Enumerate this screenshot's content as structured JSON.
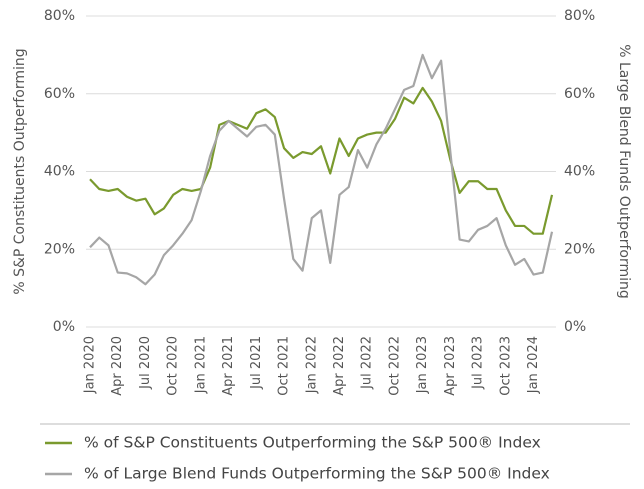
{
  "chart_data": {
    "type": "line",
    "ylabel": "% S&P Constituents Outperforming",
    "y2label": "% Large Blend Funds Outperforming",
    "categories": [
      "Jan 2020",
      null,
      null,
      "Apr 2020",
      null,
      null,
      "Jul 2020",
      null,
      null,
      "Oct 2020",
      null,
      null,
      "Jan 2021",
      null,
      null,
      "Apr 2021",
      null,
      null,
      "Jul 2021",
      null,
      null,
      "Oct 2021",
      null,
      null,
      "Jan 2022",
      null,
      null,
      "Apr 2022",
      null,
      null,
      "Jul 2022",
      null,
      null,
      "Oct 2022",
      null,
      null,
      "Jan 2023",
      null,
      null,
      "Apr 2023",
      null,
      null,
      "Jul 2023",
      null,
      null,
      "Oct 2023",
      null,
      null,
      "Jan 2024",
      null,
      null
    ],
    "series": [
      {
        "name": "% of S&P Constituents Outperforming the S&P 500® Index",
        "color": "#7a9a2e",
        "values": [
          38,
          35.5,
          35,
          35.5,
          33.5,
          32.5,
          33,
          29,
          30.5,
          34,
          35.5,
          35,
          35.5,
          41,
          52,
          53,
          52,
          51,
          55,
          56,
          54,
          46,
          43.5,
          45,
          44.5,
          46.5,
          39.5,
          48.5,
          44,
          48.5,
          49.5,
          50,
          50,
          53.5,
          59,
          57.5,
          61.5,
          58,
          53,
          43,
          34.5,
          37.5,
          37.5,
          35.5,
          35.5,
          30,
          26,
          26,
          24,
          24,
          34
        ]
      },
      {
        "name": "% of Large Blend Funds Outperforming the S&P 500® Index",
        "color": "#a6a6a6",
        "axis": "y2",
        "values": [
          20.5,
          23,
          21,
          14,
          13.8,
          12.8,
          11,
          13.5,
          18.5,
          21,
          24,
          27.5,
          35,
          44,
          50.5,
          53,
          51,
          49,
          51.5,
          52,
          49.5,
          33,
          17.5,
          14.5,
          28,
          30,
          16.5,
          34,
          36,
          45.5,
          41,
          47,
          51,
          56,
          61,
          62,
          70,
          64,
          68.5,
          45,
          22.5,
          22,
          25,
          26,
          28,
          21,
          16,
          17.5,
          13.5,
          14,
          24.5
        ]
      }
    ],
    "ylim": [
      0,
      80
    ],
    "yticks": [
      {
        "value": 0,
        "label": "0%"
      },
      {
        "value": 20,
        "label": "20%"
      },
      {
        "value": 40,
        "label": "40%"
      },
      {
        "value": 60,
        "label": "60%"
      },
      {
        "value": 80,
        "label": "80%"
      }
    ],
    "y2lim": [
      0,
      80
    ],
    "y2ticks": [
      {
        "value": 0,
        "label": "0%"
      },
      {
        "value": 20,
        "label": "20%"
      },
      {
        "value": 40,
        "label": "40%"
      },
      {
        "value": 60,
        "label": "60%"
      },
      {
        "value": 80,
        "label": "80%"
      }
    ],
    "grid": true,
    "legend": "bottom"
  }
}
